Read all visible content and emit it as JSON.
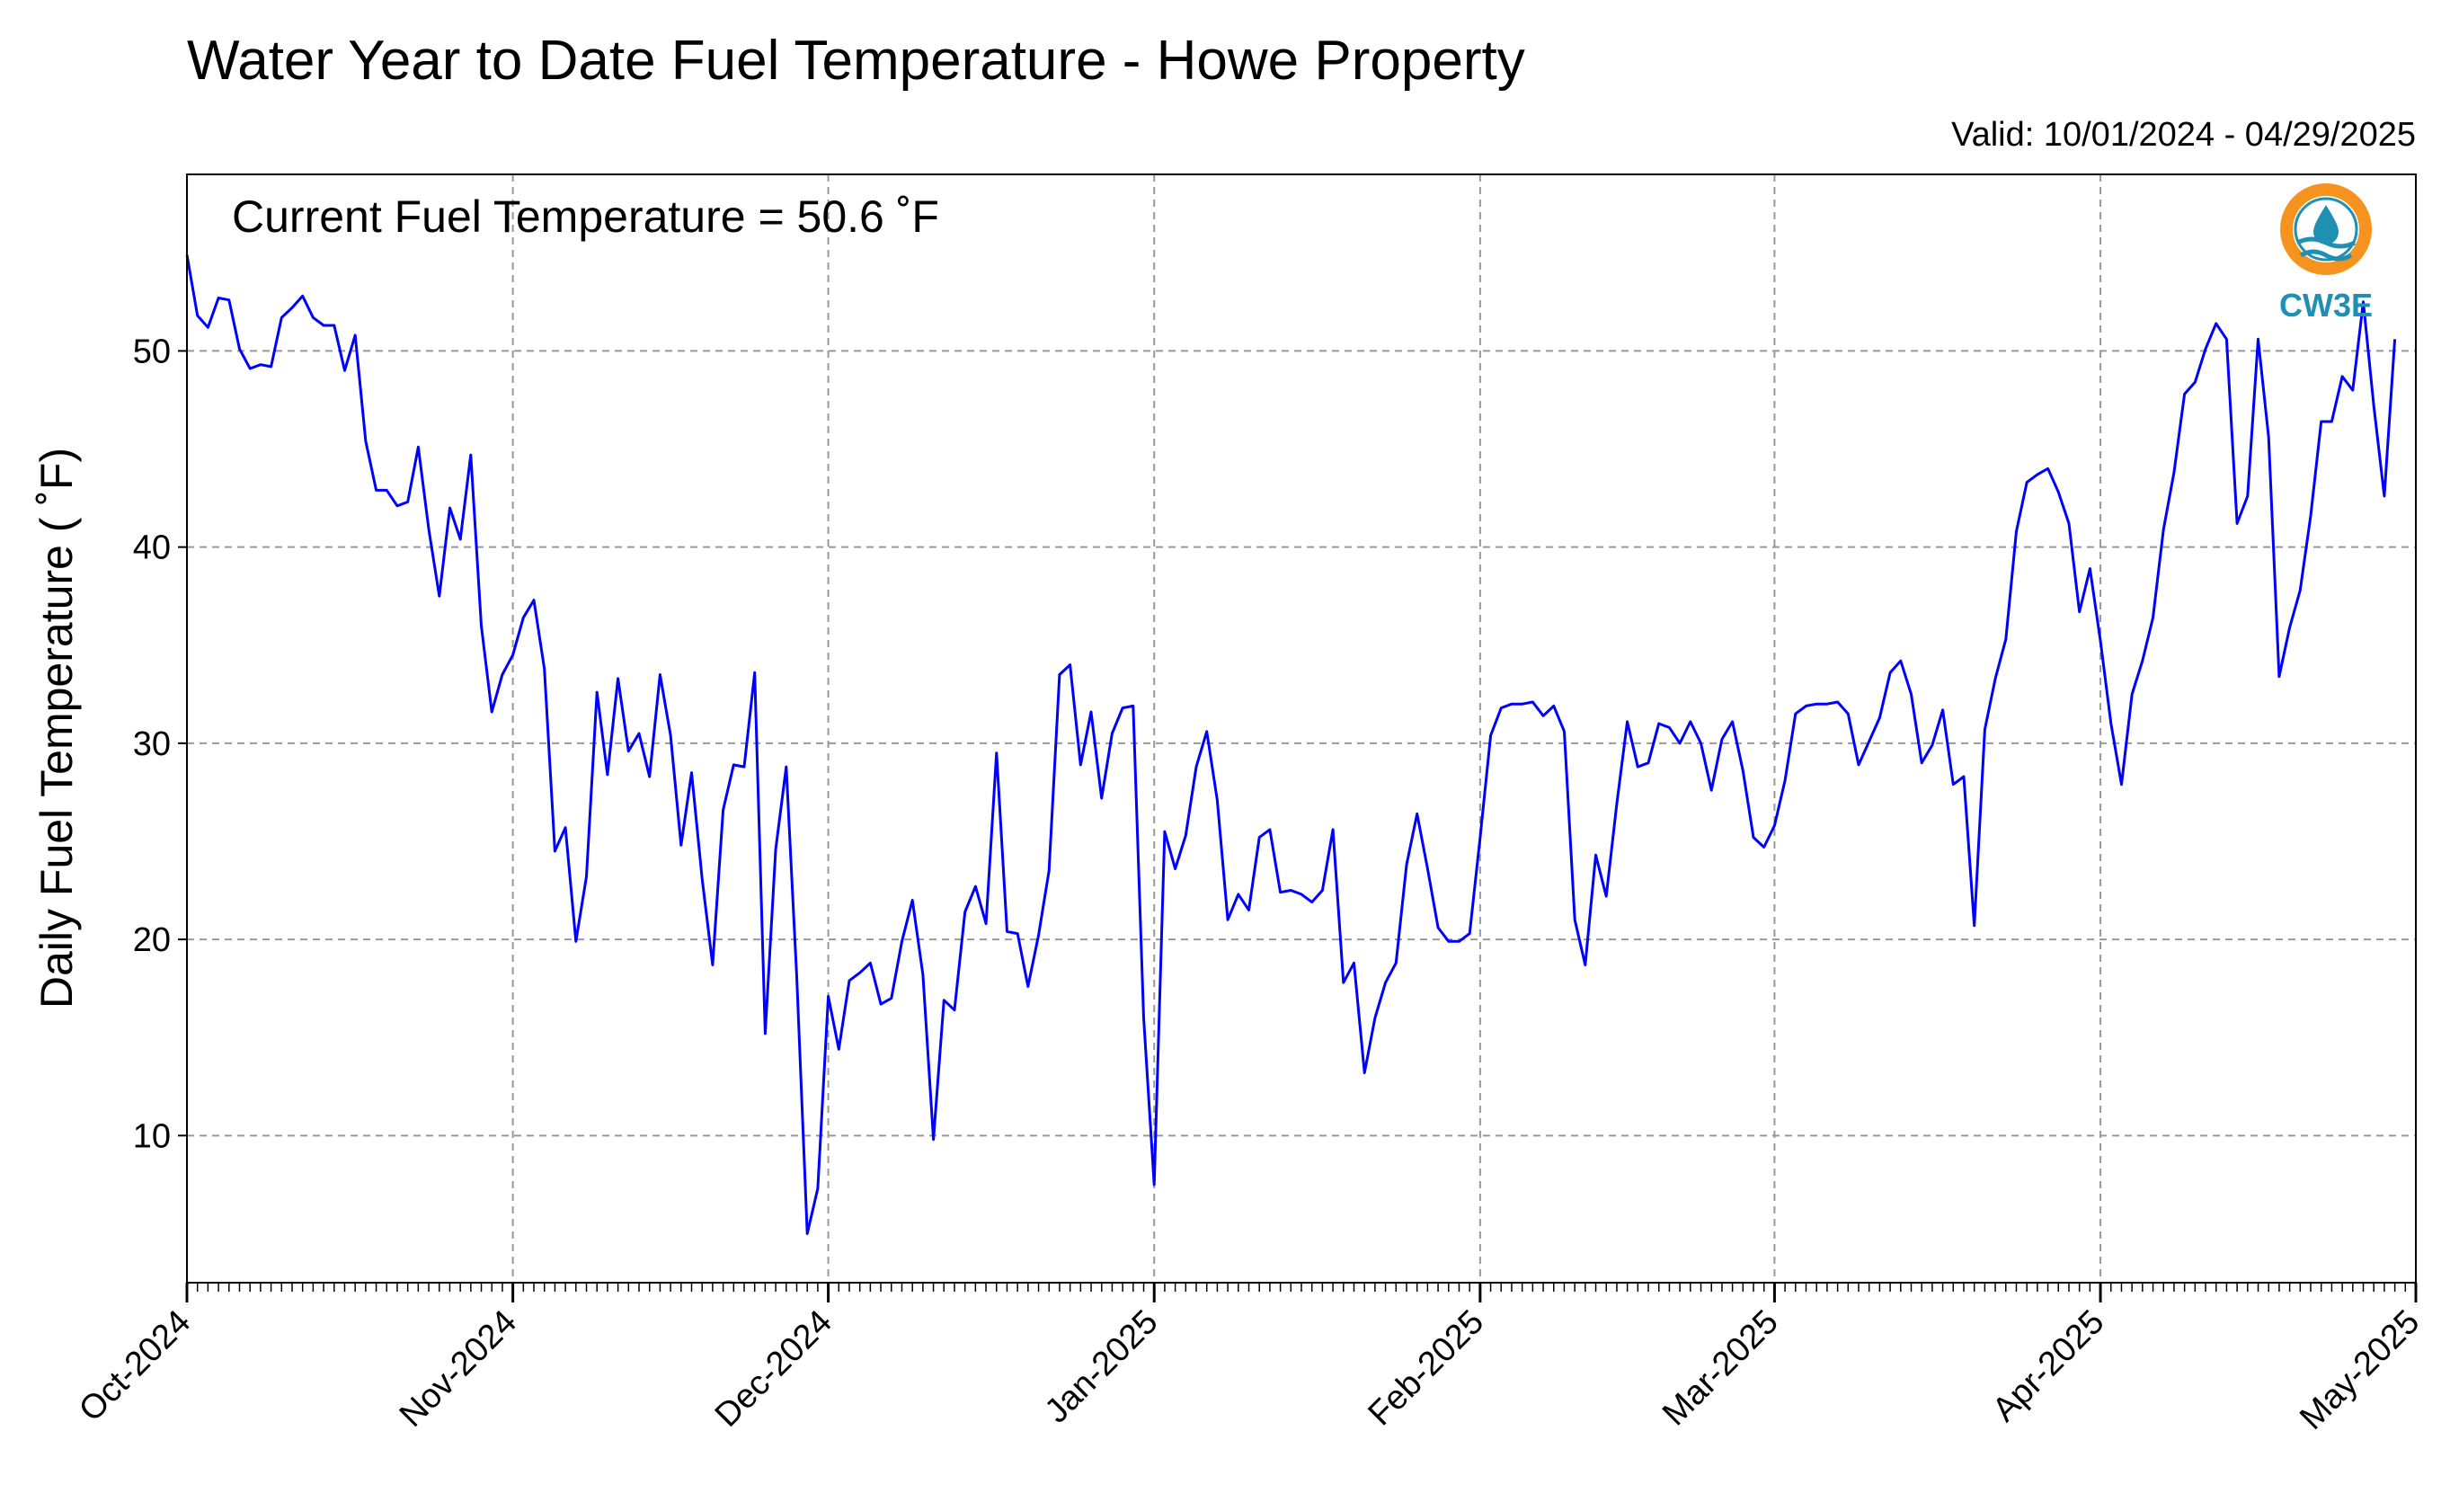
{
  "chart_data": {
    "type": "line",
    "title": "Water Year to Date Fuel Temperature - Howe Property",
    "subtitle": "Valid: 10/01/2024 - 04/29/2025",
    "ylabel": "Daily Fuel Temperature ( ˚F)",
    "xlabel": "",
    "annotation": "Current Fuel Temperature = 50.6 ˚F",
    "logo_text": "CW3E",
    "ylim": [
      2.5,
      59
    ],
    "yticks": [
      10,
      20,
      30,
      40,
      50
    ],
    "xlim": [
      "2024-10-01",
      "2025-05-01"
    ],
    "xticks": [
      {
        "date": "2024-10-01",
        "label": "Oct-2024"
      },
      {
        "date": "2024-11-01",
        "label": "Nov-2024"
      },
      {
        "date": "2024-12-01",
        "label": "Dec-2024"
      },
      {
        "date": "2025-01-01",
        "label": "Jan-2025"
      },
      {
        "date": "2025-02-01",
        "label": "Feb-2025"
      },
      {
        "date": "2025-03-01",
        "label": "Mar-2025"
      },
      {
        "date": "2025-04-01",
        "label": "Apr-2025"
      },
      {
        "date": "2025-05-01",
        "label": "May-2025"
      }
    ],
    "grid": true,
    "line_color": "#0000ff",
    "logo_colors": {
      "orange": "#f5931e",
      "teal": "#1f8fb3"
    },
    "series": [
      {
        "start_date": "2024-10-01",
        "values": [
          54.9,
          51.8,
          51.2,
          52.7,
          52.6,
          50.1,
          49.1,
          49.3,
          49.2,
          51.7,
          52.2,
          52.8,
          51.7,
          51.3,
          51.3,
          49.0,
          50.8,
          45.4,
          42.9,
          42.9,
          42.1,
          42.3,
          45.1,
          40.9,
          37.5,
          42.0,
          40.4,
          44.7,
          36.0,
          31.6,
          33.5,
          34.5,
          36.4,
          37.3,
          33.8,
          24.5,
          25.7,
          19.9,
          23.2,
          32.6,
          28.4,
          33.3,
          29.6,
          30.5,
          28.3,
          33.5,
          30.4,
          24.8,
          28.5,
          23.1,
          18.7,
          26.6,
          28.9,
          28.8,
          33.6,
          15.2,
          24.6,
          28.8,
          18.1,
          5.0,
          7.3,
          17.1,
          14.4,
          17.9,
          18.3,
          18.8,
          16.7,
          17.0,
          19.9,
          22.0,
          18.2,
          9.8,
          16.9,
          16.4,
          21.4,
          22.7,
          20.8,
          29.5,
          20.4,
          20.3,
          17.6,
          20.2,
          23.5,
          33.5,
          34.0,
          28.9,
          31.6,
          27.2,
          30.5,
          31.8,
          31.9,
          16.0,
          7.5,
          25.5,
          23.6,
          25.3,
          28.8,
          30.6,
          27.1,
          21.0,
          22.3,
          21.5,
          25.2,
          25.6,
          22.4,
          22.5,
          22.3,
          21.9,
          22.5,
          25.6,
          17.8,
          18.8,
          13.2,
          16.0,
          17.8,
          18.8,
          23.8,
          26.4,
          23.6,
          20.6,
          19.9,
          19.9,
          20.3,
          25.2,
          30.4,
          31.8,
          32.0,
          32.0,
          32.1,
          31.4,
          31.9,
          30.6,
          21.0,
          18.7,
          24.3,
          22.2,
          26.9,
          31.1,
          28.8,
          29.0,
          31.0,
          30.8,
          30.0,
          31.1,
          30.0,
          27.6,
          30.2,
          31.1,
          28.6,
          25.2,
          24.7,
          25.8,
          28.1,
          31.5,
          31.9,
          32.0,
          32.0,
          32.1,
          31.5,
          28.9,
          30.1,
          31.3,
          33.6,
          34.2,
          32.5,
          29.0,
          29.9,
          31.7,
          27.9,
          28.3,
          20.7,
          30.7,
          33.3,
          35.3,
          40.8,
          43.3,
          43.7,
          44.0,
          42.8,
          41.2,
          36.7,
          38.9,
          35.2,
          31.0,
          27.9,
          32.5,
          34.2,
          36.4,
          40.9,
          43.8,
          47.8,
          48.4,
          50.1,
          51.4,
          50.6,
          41.2,
          42.6,
          50.6,
          45.6,
          33.4,
          35.9,
          37.8,
          41.6,
          46.4,
          46.4,
          48.7,
          48.0,
          52.5,
          47.2,
          42.6,
          50.6
        ]
      }
    ]
  }
}
